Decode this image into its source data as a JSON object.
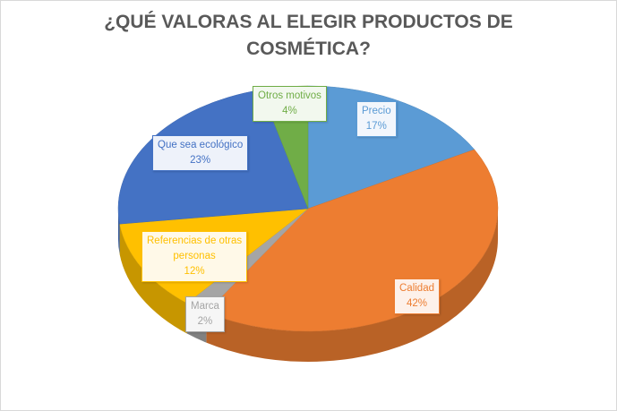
{
  "chart_data": {
    "type": "pie",
    "style": "3d",
    "title": "¿QUÉ VALORAS AL ELEGIR PRODUCTOS DE COSMÉTICA?",
    "title_lines": [
      "¿QUÉ VALORAS AL ELEGIR PRODUCTOS DE",
      "COSMÉTICA?"
    ],
    "categories": [
      "Precio",
      "Calidad",
      "Marca",
      "Referencias de otras personas",
      "Que sea ecológico",
      "Otros motivos"
    ],
    "values": [
      17,
      42,
      2,
      12,
      23,
      4
    ],
    "unit": "%",
    "colors": [
      "#5B9BD5",
      "#ED7D31",
      "#A5A5A5",
      "#FFC000",
      "#4472C4",
      "#70AD47"
    ],
    "legend": "none (data labels with category name and percentage)",
    "labels": [
      {
        "name": "Precio",
        "pct": "17%"
      },
      {
        "name": "Calidad",
        "pct": "42%"
      },
      {
        "name": "Marca",
        "pct": "2%"
      },
      {
        "name": "Referencias de otras",
        "name2": "personas",
        "pct": "12%"
      },
      {
        "name": "Que sea ecológico",
        "pct": "23%"
      },
      {
        "name": "Otros motivos",
        "pct": "4%"
      }
    ]
  }
}
